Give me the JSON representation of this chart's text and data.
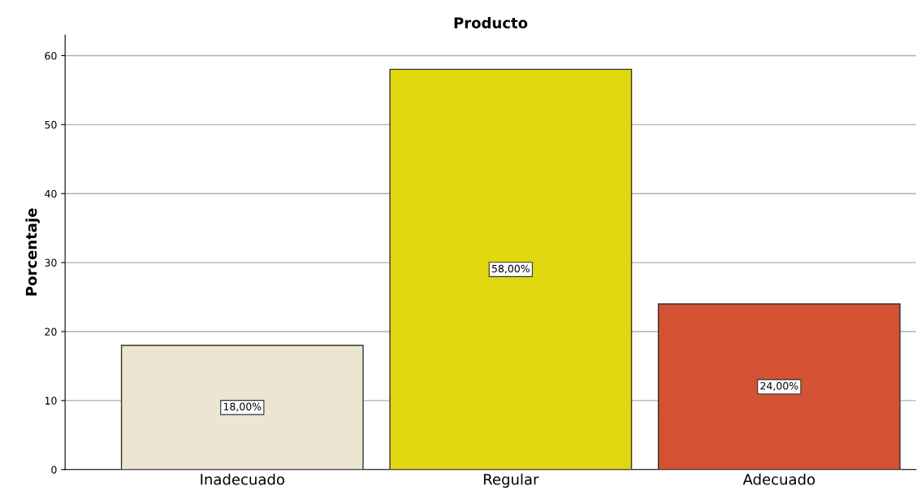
{
  "chart_data": {
    "type": "bar",
    "title": "Producto",
    "ylabel": "Porcentaje",
    "categories": [
      "Inadecuado",
      "Regular",
      "Adecuado"
    ],
    "values": [
      18,
      58,
      24
    ],
    "colors": [
      "#ebe5d2",
      "#e1d70e",
      "#d35233"
    ],
    "value_labels": [
      "18,00%",
      "58,00%",
      "24,00%"
    ],
    "ylim": [
      0,
      63
    ],
    "yticks": [
      0,
      10,
      20,
      30,
      40,
      50,
      60
    ],
    "grid": "y",
    "legend": false
  }
}
